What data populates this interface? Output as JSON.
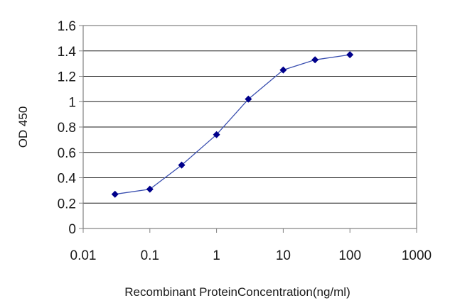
{
  "chart_data": {
    "type": "line",
    "xlabel": "Recombinant ProteinConcentration(ng/ml)",
    "ylabel": "OD 450",
    "xscale": "log",
    "xlim": [
      0.01,
      1000
    ],
    "ylim": [
      0,
      1.6
    ],
    "x_ticks": [
      0.01,
      0.1,
      1,
      10,
      100,
      1000
    ],
    "x_tick_labels": [
      "0.01",
      "0.1",
      "1",
      "10",
      "100",
      "1000"
    ],
    "y_ticks": [
      0,
      0.2,
      0.4,
      0.6,
      0.8,
      1,
      1.2,
      1.4,
      1.6
    ],
    "y_tick_labels": [
      "0",
      "0.2",
      "0.4",
      "0.6",
      "0.8",
      "1",
      "1.2",
      "1.4",
      "1.6"
    ],
    "grid": "horizontal",
    "legend": "none",
    "series": [
      {
        "x": [
          0.03,
          0.1,
          0.3,
          1,
          3,
          10,
          30,
          100
        ],
        "y": [
          0.27,
          0.31,
          0.5,
          0.74,
          1.02,
          1.25,
          1.33,
          1.37
        ],
        "color": "#00008b",
        "marker": "diamond"
      }
    ]
  }
}
